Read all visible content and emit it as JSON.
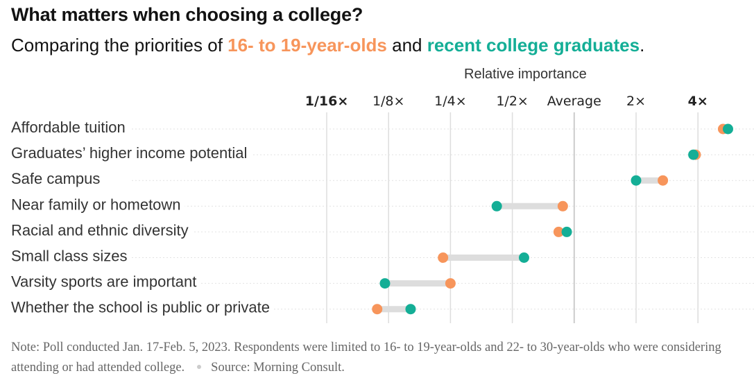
{
  "title": "What matters when choosing a college?",
  "subtitle": {
    "prefix": "Comparing the priorities of ",
    "teen_label": "16- to 19-year-olds",
    "middle": " and ",
    "grad_label": "recent college graduates",
    "suffix": "."
  },
  "colors": {
    "teen": "#f7955b",
    "grad": "#14ae96",
    "connector": "#dddddd",
    "grid": "#dddddd",
    "average": "#cccccc"
  },
  "chart_data": {
    "type": "dot-plot",
    "axis_title": "Relative importance",
    "scale": "log2",
    "xlim": [
      0.0625,
      5.5
    ],
    "ticks": [
      {
        "value": 0.0625,
        "label": "1/16×",
        "bold": true
      },
      {
        "value": 0.125,
        "label": "1/8×",
        "bold": false
      },
      {
        "value": 0.25,
        "label": "1/4×",
        "bold": false
      },
      {
        "value": 0.5,
        "label": "1/2×",
        "bold": false
      },
      {
        "value": 1,
        "label": "Average",
        "bold": false
      },
      {
        "value": 2,
        "label": "2×",
        "bold": false
      },
      {
        "value": 4,
        "label": "4×",
        "bold": true
      }
    ],
    "categories": [
      "Affordable tuition",
      "Graduates’ higher income potential",
      "Safe campus",
      "Near family or hometown",
      "Racial and ethnic diversity",
      "Small class sizes",
      "Varsity sports are important",
      "Whether the school is public or private"
    ],
    "series": [
      {
        "name": "16- to 19-year-olds",
        "color": "#f7955b",
        "values": [
          5.3,
          3.9,
          2.7,
          0.88,
          0.84,
          0.23,
          0.25,
          0.11
        ]
      },
      {
        "name": "recent college graduates",
        "color": "#14ae96",
        "values": [
          5.6,
          3.8,
          2.0,
          0.42,
          0.92,
          0.57,
          0.12,
          0.16
        ]
      }
    ]
  },
  "note": {
    "text": "Note: Poll conducted Jan. 17-Feb. 5, 2023. Respondents were limited to 16- to 19-year-olds and 22- to 30-year-olds who were considering attending or had attended college.",
    "source": "Source: Morning Consult."
  }
}
